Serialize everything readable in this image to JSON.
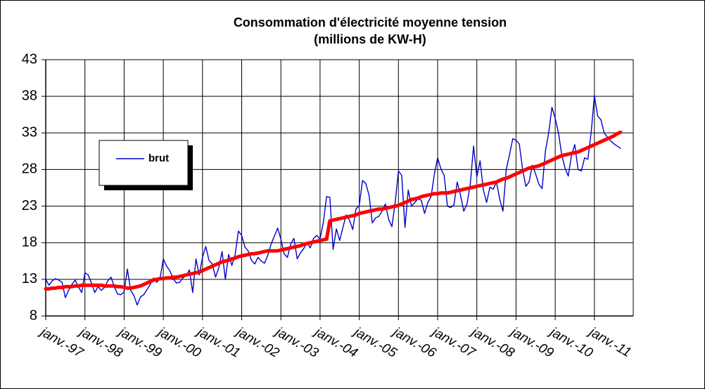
{
  "chart_data": {
    "type": "line",
    "title": "Consommation d'électricité moyenne tension",
    "subtitle": "(millions de KW-H)",
    "categories": [
      "janv.-97",
      null,
      null,
      null,
      null,
      null,
      null,
      null,
      null,
      null,
      null,
      null,
      "janv.-98",
      null,
      null,
      null,
      null,
      null,
      null,
      null,
      null,
      null,
      null,
      null,
      "janv.-99",
      null,
      null,
      null,
      null,
      null,
      null,
      null,
      null,
      null,
      null,
      null,
      "janv.-00",
      null,
      null,
      null,
      null,
      null,
      null,
      null,
      null,
      null,
      null,
      null,
      "janv.-01",
      null,
      null,
      null,
      null,
      null,
      null,
      null,
      null,
      null,
      null,
      null,
      "janv.-02",
      null,
      null,
      null,
      null,
      null,
      null,
      null,
      null,
      null,
      null,
      null,
      "janv.-03",
      null,
      null,
      null,
      null,
      null,
      null,
      null,
      null,
      null,
      null,
      null,
      "janv.-04",
      null,
      null,
      null,
      null,
      null,
      null,
      null,
      null,
      null,
      null,
      null,
      "janv.-05",
      null,
      null,
      null,
      null,
      null,
      null,
      null,
      null,
      null,
      null,
      null,
      "janv.-06",
      null,
      null,
      null,
      null,
      null,
      null,
      null,
      null,
      null,
      null,
      null,
      "janv.-07",
      null,
      null,
      null,
      null,
      null,
      null,
      null,
      null,
      null,
      null,
      null,
      "janv.-08",
      null,
      null,
      null,
      null,
      null,
      null,
      null,
      null,
      null,
      null,
      null,
      "janv.-09",
      null,
      null,
      null,
      null,
      null,
      null,
      null,
      null,
      null,
      null,
      null,
      "janv.-10",
      null,
      null,
      null,
      null,
      null,
      null,
      null,
      null,
      null,
      null,
      null,
      "janv.-11",
      null,
      null,
      null,
      null,
      null,
      null,
      null,
      null
    ],
    "series": [
      {
        "name": "brut",
        "color": "#0000cc",
        "values": [
          13.0,
          12.2,
          12.8,
          13.1,
          12.9,
          12.6,
          10.5,
          11.5,
          12.3,
          12.9,
          12.0,
          11.2,
          13.9,
          13.6,
          12.5,
          11.2,
          12.0,
          11.5,
          11.9,
          12.8,
          13.3,
          12.0,
          11.0,
          10.9,
          11.3,
          14.4,
          11.5,
          10.8,
          9.5,
          10.6,
          10.9,
          11.6,
          12.3,
          13.2,
          12.6,
          13.1,
          15.8,
          14.8,
          14.2,
          13.1,
          12.5,
          12.6,
          13.2,
          13.5,
          14.3,
          11.2,
          15.8,
          13.6,
          16.0,
          17.5,
          15.6,
          15.1,
          13.3,
          14.6,
          16.8,
          13.0,
          16.4,
          14.9,
          16.4,
          19.6,
          19.0,
          17.4,
          16.9,
          15.6,
          15.1,
          16.0,
          15.5,
          15.2,
          16.3,
          17.8,
          18.9,
          20.0,
          18.5,
          16.5,
          16.0,
          17.8,
          18.6,
          15.8,
          16.6,
          17.2,
          18.0,
          17.3,
          18.6,
          19.0,
          18.5,
          20.8,
          24.3,
          24.2,
          17.1,
          19.9,
          18.3,
          20.1,
          21.8,
          21.1,
          19.8,
          22.6,
          23.1,
          26.5,
          26.1,
          24.5,
          20.7,
          21.4,
          21.6,
          22.3,
          23.3,
          21.2,
          20.2,
          23.5,
          27.8,
          27.2,
          20.1,
          25.2,
          23.0,
          23.5,
          24.0,
          23.8,
          22.0,
          23.5,
          24.3,
          27.4,
          29.6,
          28.1,
          27.2,
          23.0,
          22.8,
          23.2,
          26.3,
          24.5,
          22.3,
          23.3,
          26.0,
          31.2,
          27.0,
          29.2,
          25.2,
          23.5,
          25.6,
          25.3,
          26.3,
          24.0,
          22.3,
          28.0,
          30.0,
          32.2,
          32.0,
          31.5,
          28.1,
          25.7,
          26.3,
          28.6,
          27.4,
          26.0,
          25.4,
          30.5,
          33.0,
          36.5,
          35.0,
          33.0,
          30.0,
          28.2,
          27.1,
          30.0,
          31.4,
          28.0,
          27.8,
          29.6,
          29.4,
          33.0,
          38.1,
          35.3,
          34.8,
          33.0,
          32.4,
          31.9,
          31.5,
          31.2,
          30.9
        ]
      },
      {
        "color": "#ff0000",
        "values": [
          11.7,
          11.7,
          11.8,
          11.8,
          11.9,
          11.9,
          12.0,
          12.0,
          12.0,
          12.1,
          12.1,
          12.2,
          12.2,
          12.2,
          12.2,
          12.2,
          12.2,
          12.2,
          12.1,
          12.1,
          12.1,
          12.1,
          12.0,
          12.0,
          11.9,
          11.8,
          11.8,
          11.9,
          12.0,
          12.1,
          12.3,
          12.5,
          12.7,
          12.9,
          13.0,
          13.1,
          13.1,
          13.2,
          13.2,
          13.3,
          13.3,
          13.4,
          13.5,
          13.6,
          13.7,
          13.8,
          13.9,
          14.0,
          14.2,
          14.4,
          14.6,
          14.8,
          15.0,
          15.2,
          15.4,
          15.5,
          15.6,
          15.8,
          15.9,
          16.1,
          16.2,
          16.3,
          16.4,
          16.5,
          16.5,
          16.6,
          16.7,
          16.8,
          16.9,
          16.9,
          16.9,
          16.9,
          17.0,
          17.1,
          17.2,
          17.3,
          17.4,
          17.5,
          17.6,
          17.8,
          17.9,
          18.0,
          18.1,
          18.2,
          18.3,
          18.4,
          18.5,
          21.0,
          21.1,
          21.2,
          21.3,
          21.4,
          21.5,
          21.6,
          21.7,
          21.8,
          22.0,
          22.1,
          22.2,
          22.3,
          22.4,
          22.5,
          22.6,
          22.6,
          22.7,
          22.8,
          22.9,
          23.0,
          23.1,
          23.3,
          23.5,
          23.7,
          23.9,
          24.0,
          24.1,
          24.3,
          24.4,
          24.5,
          24.6,
          24.7,
          24.7,
          24.8,
          24.8,
          24.8,
          24.9,
          25.0,
          25.1,
          25.2,
          25.3,
          25.4,
          25.5,
          25.6,
          25.7,
          25.8,
          25.9,
          26.0,
          26.1,
          26.2,
          26.3,
          26.5,
          26.7,
          26.8,
          27.0,
          27.2,
          27.4,
          27.6,
          27.8,
          28.0,
          28.2,
          28.3,
          28.4,
          28.5,
          28.7,
          28.9,
          29.1,
          29.3,
          29.5,
          29.7,
          29.9,
          30.0,
          30.1,
          30.2,
          30.3,
          30.4,
          30.6,
          30.8,
          31.0,
          31.2,
          31.4,
          31.6,
          31.8,
          32.0,
          32.2,
          32.4,
          32.6,
          32.9,
          33.1
        ]
      }
    ],
    "ylim": [
      8,
      43
    ],
    "yticks": [
      8,
      13,
      18,
      23,
      28,
      33,
      38,
      43
    ],
    "grid": true
  }
}
